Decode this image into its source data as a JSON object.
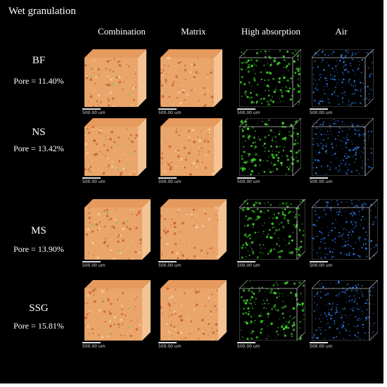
{
  "title": "Wet granulation",
  "columns": [
    "Combination",
    "Matrix",
    "High absorption",
    "Air"
  ],
  "scale_label": "500.00 um",
  "rows": [
    {
      "name": "BF",
      "pore": "Pore = 11.40%"
    },
    {
      "name": "NS",
      "pore": "Pore = 13.42%"
    },
    {
      "name": "MS",
      "pore": "Pore = 13.90%"
    },
    {
      "name": "SSG",
      "pore": "Pore = 15.81%"
    }
  ],
  "colors": {
    "combination": "#e9a56a",
    "matrix": "#e9a56a",
    "high_absorption": "#3fd22a",
    "air": "#2f86ff",
    "background": "#000000"
  }
}
